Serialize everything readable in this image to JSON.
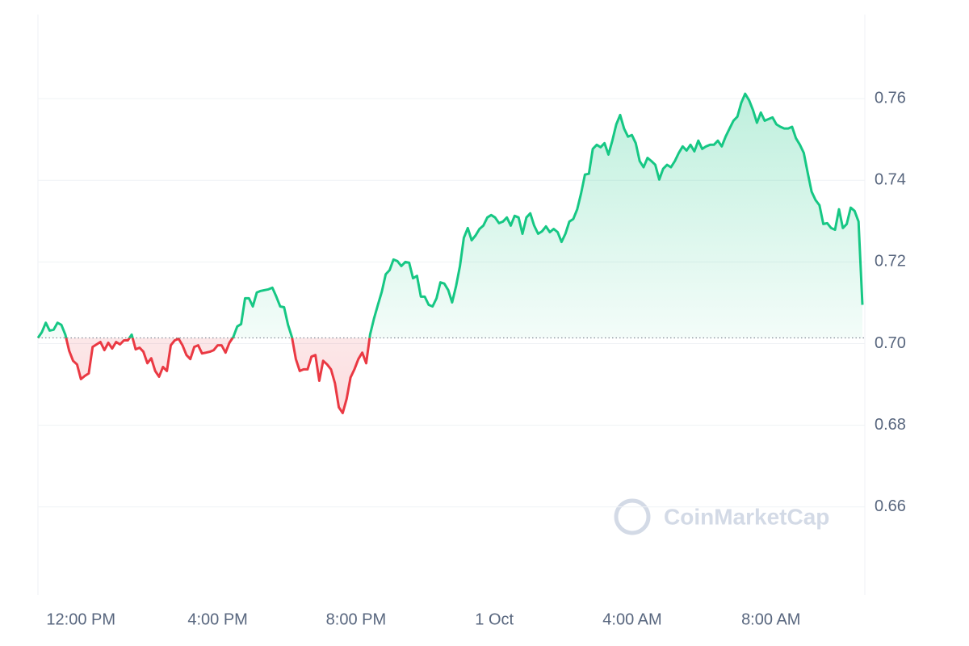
{
  "chart_data": {
    "type": "area",
    "values": [
      0.7014,
      0.7028,
      0.7051,
      0.7032,
      0.7034,
      0.7051,
      0.7046,
      0.7022,
      0.6982,
      0.6958,
      0.6949,
      0.6913,
      0.6921,
      0.6927,
      0.6992,
      0.6998,
      0.7004,
      0.6984,
      0.7002,
      0.6988,
      0.7004,
      0.6998,
      0.7008,
      0.7008,
      0.7022,
      0.6986,
      0.699,
      0.698,
      0.6952,
      0.6964,
      0.6933,
      0.6919,
      0.6943,
      0.6933,
      0.6996,
      0.7008,
      0.7012,
      0.6996,
      0.6972,
      0.6962,
      0.6992,
      0.6996,
      0.6976,
      0.6978,
      0.698,
      0.6984,
      0.6996,
      0.6996,
      0.6978,
      0.7002,
      0.7016,
      0.7042,
      0.7048,
      0.7111,
      0.7111,
      0.7091,
      0.7125,
      0.7129,
      0.7131,
      0.7133,
      0.7137,
      0.7115,
      0.7091,
      0.7089,
      0.7046,
      0.7016,
      0.6962,
      0.6933,
      0.6937,
      0.6937,
      0.6968,
      0.6972,
      0.6909,
      0.6958,
      0.6949,
      0.6937,
      0.6903,
      0.6844,
      0.683,
      0.6865,
      0.6917,
      0.6937,
      0.6962,
      0.6978,
      0.6952,
      0.7022,
      0.7061,
      0.7095,
      0.7127,
      0.717,
      0.718,
      0.7206,
      0.7202,
      0.719,
      0.72,
      0.7198,
      0.716,
      0.7166,
      0.7115,
      0.7115,
      0.7095,
      0.7091,
      0.7111,
      0.715,
      0.7147,
      0.7131,
      0.7101,
      0.7141,
      0.719,
      0.7259,
      0.7283,
      0.7253,
      0.7265,
      0.7281,
      0.7289,
      0.7309,
      0.7315,
      0.7309,
      0.7295,
      0.7299,
      0.7309,
      0.7289,
      0.7313,
      0.7309,
      0.7269,
      0.7309,
      0.7319,
      0.7289,
      0.7269,
      0.7275,
      0.7287,
      0.7273,
      0.7281,
      0.7273,
      0.7249,
      0.7269,
      0.7299,
      0.7305,
      0.7329,
      0.7368,
      0.7414,
      0.7416,
      0.7477,
      0.7487,
      0.7481,
      0.7491,
      0.7463,
      0.7497,
      0.7537,
      0.756,
      0.7527,
      0.7507,
      0.7511,
      0.7491,
      0.7447,
      0.7432,
      0.7455,
      0.7447,
      0.7438,
      0.7402,
      0.7428,
      0.7438,
      0.7432,
      0.7447,
      0.7467,
      0.7483,
      0.7473,
      0.7487,
      0.7471,
      0.7497,
      0.7477,
      0.7483,
      0.7487,
      0.7487,
      0.7497,
      0.7483,
      0.7507,
      0.7527,
      0.7546,
      0.7556,
      0.759,
      0.7612,
      0.7596,
      0.7572,
      0.7541,
      0.7566,
      0.7546,
      0.755,
      0.7554,
      0.7537,
      0.7531,
      0.7527,
      0.7527,
      0.7531,
      0.7503,
      0.7487,
      0.7467,
      0.7418,
      0.7372,
      0.7352,
      0.7339,
      0.7293,
      0.7295,
      0.7283,
      0.7279,
      0.7329,
      0.7283,
      0.7293,
      0.7333,
      0.7325,
      0.7299,
      0.7095
    ],
    "baseline": 0.7014,
    "up_color": "#16c784",
    "down_color": "#ea3943",
    "xlim": [
      0,
      211
    ],
    "xticks": [
      {
        "value": 11,
        "label": "12:00 PM"
      },
      {
        "value": 46,
        "label": "4:00 PM"
      },
      {
        "value": 81.4,
        "label": "8:00 PM"
      },
      {
        "value": 116.8,
        "label": "1 Oct"
      },
      {
        "value": 152.1,
        "label": "4:00 AM"
      },
      {
        "value": 187.6,
        "label": "8:00 AM"
      }
    ],
    "ylim": [
      0.6384,
      0.7806
    ],
    "yticks": [
      {
        "value": 0.66,
        "label": "0.66"
      },
      {
        "value": 0.68,
        "label": "0.68"
      },
      {
        "value": 0.7,
        "label": "0.70"
      },
      {
        "value": 0.72,
        "label": "0.72"
      },
      {
        "value": 0.74,
        "label": "0.74"
      },
      {
        "value": 0.76,
        "label": "0.76"
      }
    ],
    "grid": true,
    "watermark": "CoinMarketCap"
  }
}
